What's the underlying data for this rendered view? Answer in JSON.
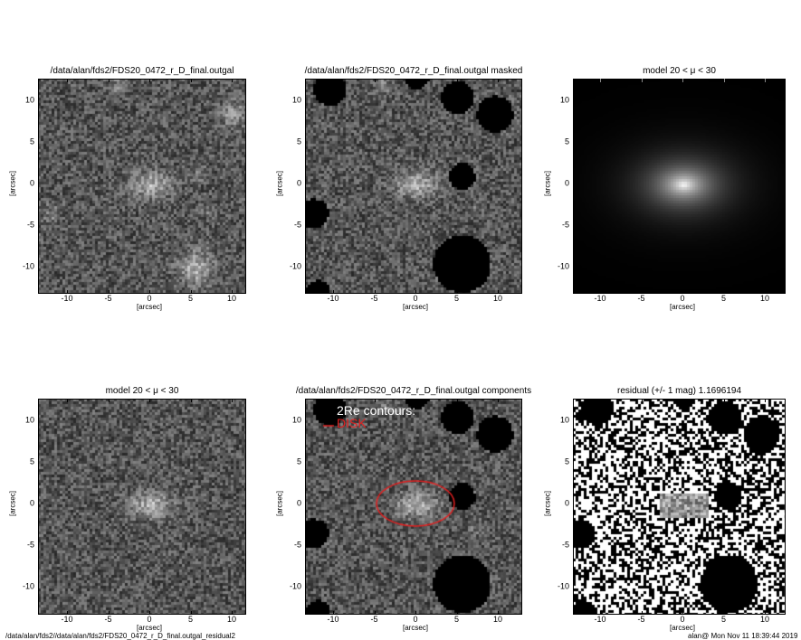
{
  "panels": [
    {
      "title": "/data/alan/fds2/FDS20_0472_r_D_final.outgal",
      "kind": "image"
    },
    {
      "title": "/data/alan/fds2/FDS20_0472_r_D_final.outgal masked",
      "kind": "masked"
    },
    {
      "title": "model 20 < μ < 30",
      "kind": "model"
    },
    {
      "title": "model 20 < μ < 30",
      "kind": "model_noise"
    },
    {
      "title": "/data/alan/fds2/FDS20_0472_r_D_final.outgal components",
      "kind": "components"
    },
    {
      "title": "residual  (+/- 1 mag)       1.1696194",
      "kind": "residual"
    }
  ],
  "axes": {
    "x_ticks": [
      "-10",
      "-5",
      "0",
      "5",
      "10"
    ],
    "y_ticks": [
      "10",
      "5",
      "0",
      "-5",
      "-10"
    ],
    "xlabel": "[arcsec]",
    "ylabel": "[arcsec]"
  },
  "legend": {
    "title": "2Re contours:",
    "items": [
      {
        "label": "DISK",
        "color": "#e02020"
      }
    ]
  },
  "footer": {
    "left": "/data/alan/fds2//data/alan/fds2/FDS20_0472_r_D_final.outgal_residual2",
    "right": "alan@  Mon Nov 11 18:39:44 2019"
  }
}
